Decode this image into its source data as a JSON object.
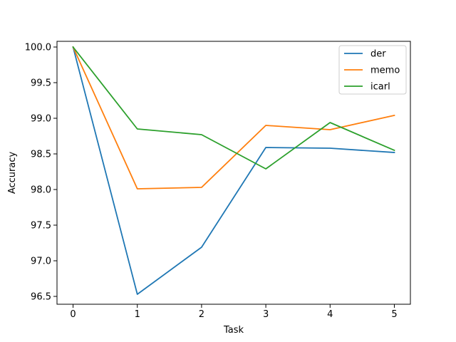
{
  "chart_data": {
    "type": "line",
    "title": "",
    "xlabel": "Task",
    "ylabel": "Accuracy",
    "x": [
      0,
      1,
      2,
      3,
      4,
      5
    ],
    "xlim": [
      -0.25,
      5.25
    ],
    "ylim": [
      96.39,
      100.08
    ],
    "xticks": [
      "0",
      "1",
      "2",
      "3",
      "4",
      "5"
    ],
    "yticks": [
      "96.5",
      "97.0",
      "97.5",
      "98.0",
      "98.5",
      "99.0",
      "99.5",
      "100.0"
    ],
    "grid": false,
    "legend_position": "top-right",
    "series": [
      {
        "name": "der",
        "color": "#1f77b4",
        "values": [
          100.0,
          96.53,
          97.19,
          98.59,
          98.58,
          98.52
        ]
      },
      {
        "name": "memo",
        "color": "#ff7f0e",
        "values": [
          100.0,
          98.01,
          98.03,
          98.9,
          98.84,
          99.04
        ]
      },
      {
        "name": "icarl",
        "color": "#2ca02c",
        "values": [
          100.0,
          98.85,
          98.77,
          98.29,
          98.94,
          98.55
        ]
      }
    ]
  }
}
